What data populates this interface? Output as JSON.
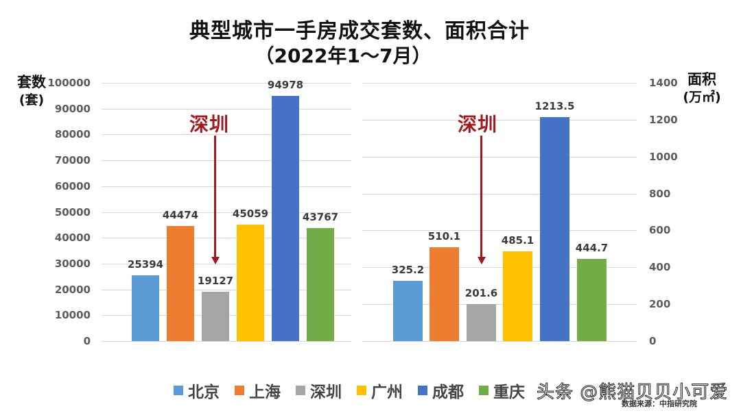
{
  "title": {
    "line1": "典型城市一手房成交套数、面积合计",
    "line2": "（2022年1～7月）"
  },
  "left_axis": {
    "title_line1": "套数",
    "title_line2": "(套)",
    "ticks": [
      "100000",
      "90000",
      "80000",
      "70000",
      "60000",
      "50000",
      "40000",
      "30000",
      "20000",
      "10000",
      "0"
    ]
  },
  "right_axis": {
    "title_line1": "面积",
    "title_line2": "(万㎡)",
    "ticks": [
      "1400",
      "1200",
      "1000",
      "800",
      "600",
      "400",
      "200",
      "0"
    ]
  },
  "callouts": {
    "left": "深圳",
    "right": "深圳"
  },
  "legend": [
    {
      "label": "北京",
      "color": "#5b9bd5"
    },
    {
      "label": "上海",
      "color": "#ed7d31"
    },
    {
      "label": "深圳",
      "color": "#a5a5a5"
    },
    {
      "label": "广州",
      "color": "#ffc000"
    },
    {
      "label": "成都",
      "color": "#4472c4"
    },
    {
      "label": "重庆",
      "color": "#70ad47"
    }
  ],
  "watermark": "头条 @熊猫贝贝小可爱",
  "source": "数据来源：中指研究院",
  "chart_data": [
    {
      "type": "bar",
      "title": "典型城市一手房成交套数（2022年1～7月）",
      "categories": [
        "北京",
        "上海",
        "深圳",
        "广州",
        "成都",
        "重庆"
      ],
      "values": [
        25394,
        44474,
        19127,
        45059,
        94978,
        43767
      ],
      "value_labels": [
        "25394",
        "44474",
        "19127",
        "45059",
        "94978",
        "43767"
      ],
      "colors": [
        "#5b9bd5",
        "#ed7d31",
        "#a5a5a5",
        "#ffc000",
        "#4472c4",
        "#70ad47"
      ],
      "xlabel": "",
      "ylabel": "套数(套)",
      "ylim": [
        0,
        100000
      ],
      "yticks": [
        0,
        10000,
        20000,
        30000,
        40000,
        50000,
        60000,
        70000,
        80000,
        90000,
        100000
      ],
      "grid": true,
      "annotation": {
        "text": "深圳",
        "points_to": "深圳",
        "style": "dark red downward arrow"
      }
    },
    {
      "type": "bar",
      "title": "典型城市一手房成交面积（2022年1～7月）",
      "categories": [
        "北京",
        "上海",
        "深圳",
        "广州",
        "成都",
        "重庆"
      ],
      "values": [
        325.2,
        510.1,
        201.6,
        485.1,
        1213.5,
        444.7
      ],
      "value_labels": [
        "325.2",
        "510.1",
        "201.6",
        "485.1",
        "1213.5",
        "444.7"
      ],
      "colors": [
        "#5b9bd5",
        "#ed7d31",
        "#a5a5a5",
        "#ffc000",
        "#4472c4",
        "#70ad47"
      ],
      "xlabel": "",
      "ylabel": "面积(万㎡)",
      "ylim": [
        0,
        1400
      ],
      "yticks": [
        0,
        200,
        400,
        600,
        800,
        1000,
        1200,
        1400
      ],
      "grid": true,
      "annotation": {
        "text": "深圳",
        "points_to": "深圳",
        "style": "dark red downward arrow"
      }
    }
  ],
  "legend_position": "bottom"
}
